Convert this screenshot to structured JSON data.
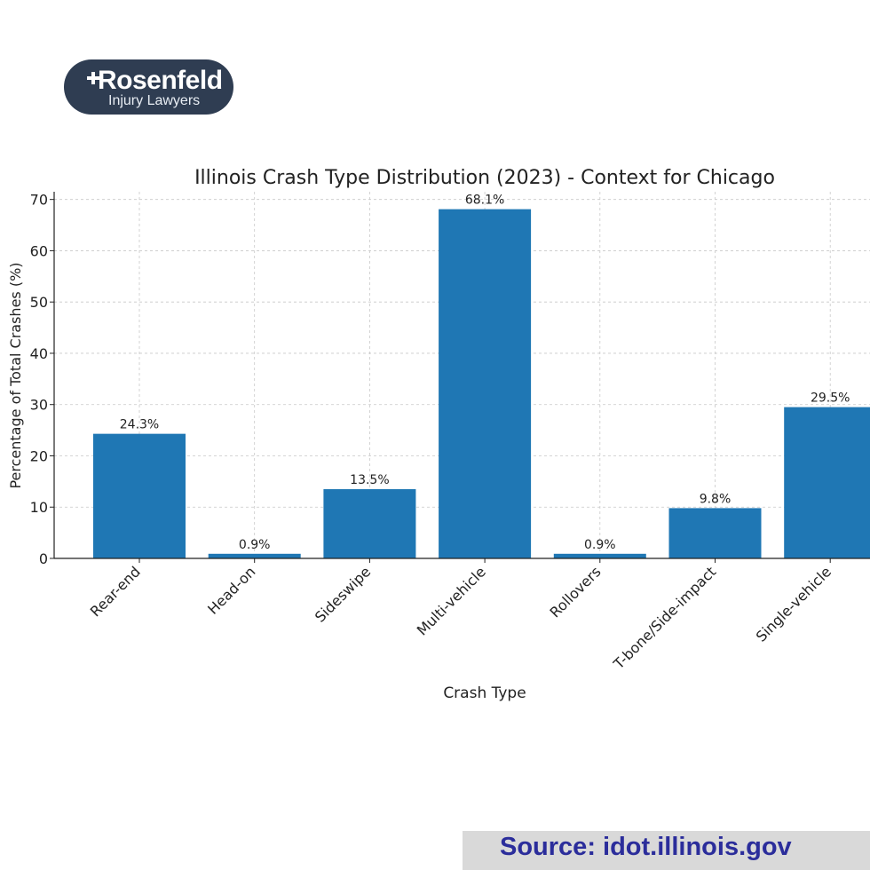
{
  "logo": {
    "name": "Rosenfeld",
    "subtitle": "Injury Lawyers",
    "bg_color": "#2f3d52"
  },
  "source": {
    "text": "Source: idot.illinois.gov",
    "text_color": "#2b2d9b",
    "bg_color": "#d9d9d9"
  },
  "chart_data": {
    "type": "bar",
    "title": "Illinois Crash Type Distribution (2023) - Context for Chicago",
    "xlabel": "Crash Type",
    "ylabel": "Percentage of Total Crashes (%)",
    "categories": [
      "Rear-end",
      "Head-on",
      "Sideswipe",
      "Multi-vehicle",
      "Rollovers",
      "T-bone/Side-impact",
      "Single-vehicle"
    ],
    "values": [
      24.3,
      0.9,
      13.5,
      68.1,
      0.9,
      9.8,
      29.5
    ],
    "value_labels": [
      "24.3%",
      "0.9%",
      "13.5%",
      "68.1%",
      "0.9%",
      "9.8%",
      "29.5%"
    ],
    "yticks": [
      0,
      10,
      20,
      30,
      40,
      50,
      60,
      70
    ],
    "ylim": [
      0,
      71.5
    ],
    "grid": true,
    "bar_color": "#1f77b4"
  }
}
